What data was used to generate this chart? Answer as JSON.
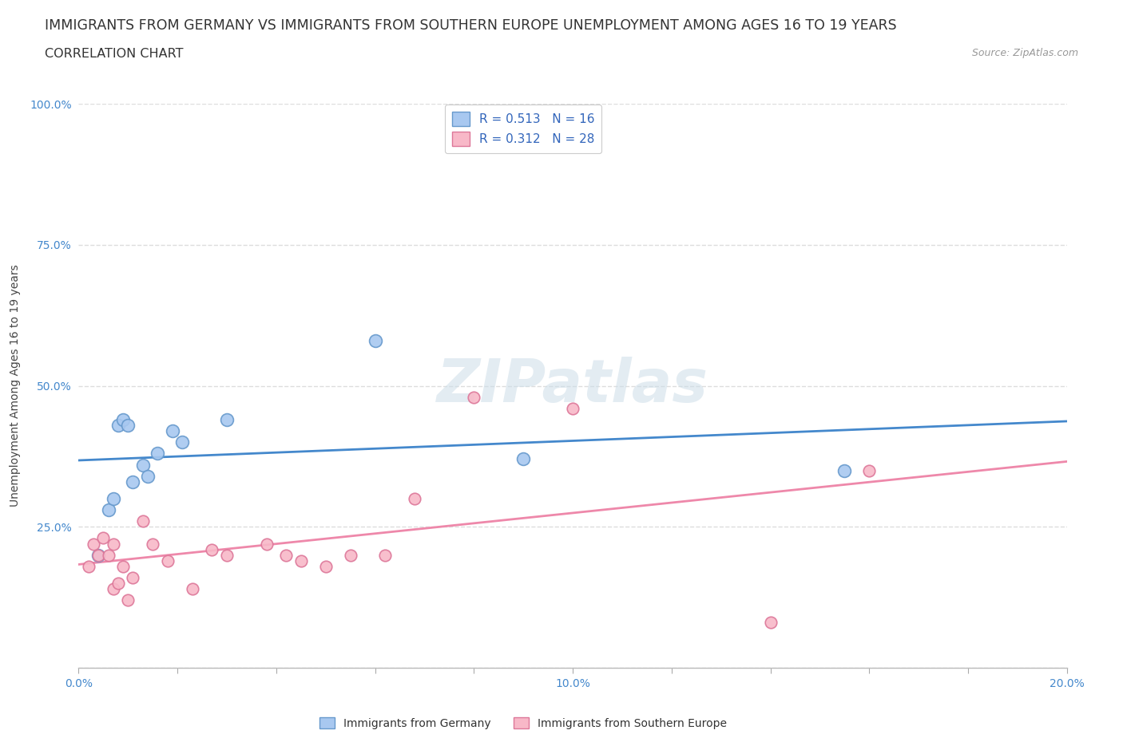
{
  "title_line1": "IMMIGRANTS FROM GERMANY VS IMMIGRANTS FROM SOUTHERN EUROPE UNEMPLOYMENT AMONG AGES 16 TO 19 YEARS",
  "title_line2": "CORRELATION CHART",
  "source": "Source: ZipAtlas.com",
  "ylabel": "Unemployment Among Ages 16 to 19 years",
  "watermark": "ZIPatlas",
  "xlim": [
    0.0,
    0.2
  ],
  "ylim": [
    0.0,
    1.0
  ],
  "germany_color": "#a8c8f0",
  "germany_edge": "#6699cc",
  "southern_color": "#f8b8c8",
  "southern_edge": "#dd7799",
  "line_germany": "#4488cc",
  "line_southern": "#ee88aa",
  "R_germany": 0.513,
  "N_germany": 16,
  "R_southern": 0.312,
  "N_southern": 28,
  "germany_x": [
    0.004,
    0.006,
    0.007,
    0.008,
    0.009,
    0.01,
    0.011,
    0.013,
    0.014,
    0.016,
    0.019,
    0.021,
    0.03,
    0.06,
    0.09,
    0.155
  ],
  "germany_y": [
    0.2,
    0.28,
    0.3,
    0.43,
    0.44,
    0.43,
    0.33,
    0.36,
    0.34,
    0.38,
    0.42,
    0.4,
    0.44,
    0.58,
    0.37,
    0.35
  ],
  "southern_x": [
    0.002,
    0.003,
    0.004,
    0.005,
    0.006,
    0.007,
    0.007,
    0.008,
    0.009,
    0.01,
    0.011,
    0.013,
    0.015,
    0.018,
    0.023,
    0.027,
    0.03,
    0.038,
    0.042,
    0.045,
    0.05,
    0.055,
    0.062,
    0.068,
    0.08,
    0.1,
    0.14,
    0.16
  ],
  "southern_y": [
    0.18,
    0.22,
    0.2,
    0.23,
    0.2,
    0.22,
    0.14,
    0.15,
    0.18,
    0.12,
    0.16,
    0.26,
    0.22,
    0.19,
    0.14,
    0.21,
    0.2,
    0.22,
    0.2,
    0.19,
    0.18,
    0.2,
    0.2,
    0.3,
    0.48,
    0.46,
    0.08,
    0.35
  ],
  "bg_color": "#ffffff",
  "grid_color": "#dddddd",
  "title_fontsize": 12.5,
  "label_fontsize": 10,
  "tick_fontsize": 10
}
